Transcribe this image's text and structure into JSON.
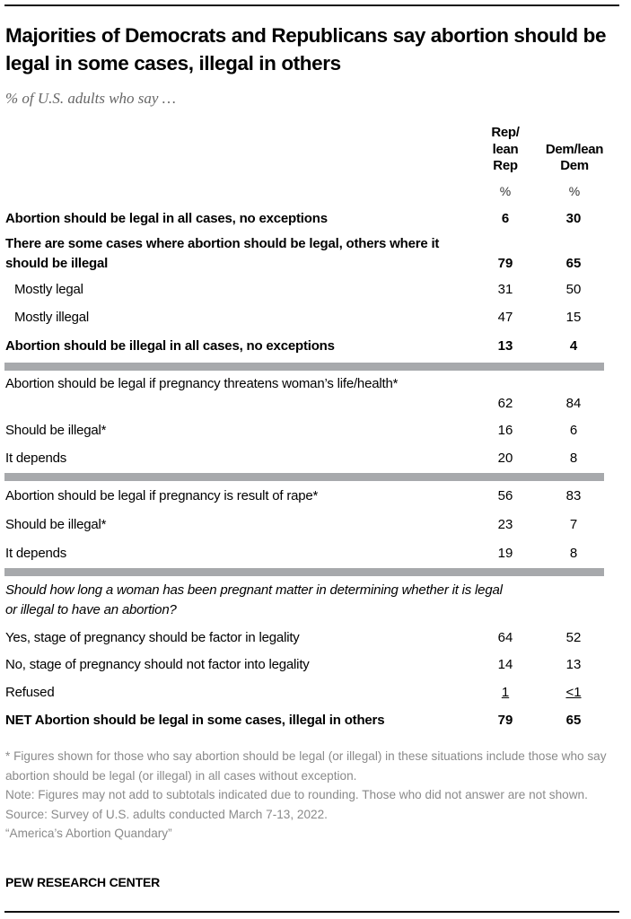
{
  "title": "Majorities of Democrats and Republicans say abortion should be legal in some cases, illegal in others",
  "subtitle": "% of U.S. adults who say …",
  "columns": [
    {
      "lines": [
        "Rep/",
        "lean",
        "Rep"
      ],
      "unit": "%"
    },
    {
      "lines": [
        "Dem/lean",
        "Dem"
      ],
      "unit": "%"
    }
  ],
  "chart_data": {
    "type": "table",
    "title": "Majorities of Democrats and Republicans say abortion should be legal in some cases, illegal in others",
    "columns": [
      "Rep/lean Rep",
      "Dem/lean Dem"
    ],
    "rows": [
      {
        "label": "Abortion should be legal in all cases, no exceptions",
        "values": [
          "6",
          "30"
        ],
        "style": "bold"
      },
      {
        "label": "There are some cases where abortion should be legal, others where it should be illegal",
        "values": [
          "79",
          "65"
        ],
        "style": "bold"
      },
      {
        "label": "Mostly legal",
        "values": [
          "31",
          "50"
        ],
        "style": "indent"
      },
      {
        "label": "Mostly illegal",
        "values": [
          "47",
          "15"
        ],
        "style": "indent"
      },
      {
        "label": "Abortion should be illegal in all cases, no exceptions",
        "values": [
          "13",
          "4"
        ],
        "style": "bold"
      },
      {
        "separator": true
      },
      {
        "label": "Abortion should be legal if pregnancy threatens woman’s life/health*",
        "values": [
          "62",
          "84"
        ]
      },
      {
        "label": "Should be illegal*",
        "values": [
          "16",
          "6"
        ]
      },
      {
        "label": "It depends",
        "values": [
          "20",
          "8"
        ]
      },
      {
        "separator": true
      },
      {
        "label": "Abortion should be legal if pregnancy is result of rape*",
        "values": [
          "56",
          "83"
        ]
      },
      {
        "label": "Should be illegal*",
        "values": [
          "23",
          "7"
        ]
      },
      {
        "label": "It depends",
        "values": [
          "19",
          "8"
        ]
      },
      {
        "separator": true
      },
      {
        "label": "Should how long a woman has been pregnant matter in determining whether it is legal or illegal to have an abortion?",
        "values": [
          "",
          ""
        ],
        "style": "italic"
      },
      {
        "label": "Yes, stage of pregnancy should be factor in legality",
        "values": [
          "64",
          "52"
        ]
      },
      {
        "label": "No, stage of pregnancy should not factor into legality",
        "values": [
          "14",
          "13"
        ]
      },
      {
        "label": "Refused",
        "values": [
          "1",
          "<1"
        ],
        "style": "underline-values"
      },
      {
        "label": "NET Abortion should be legal in some cases, illegal in others",
        "values": [
          "79",
          "65"
        ],
        "style": "bold"
      }
    ]
  },
  "notes": [
    "* Figures shown for those who say abortion should be legal (or illegal) in these situations include those who say abortion should be legal (or illegal) in all cases without exception.",
    "Note: Figures may not add to subtotals indicated due to rounding. Those who did not answer are not shown.",
    "Source: Survey of U.S. adults conducted March 7-13, 2022.",
    "“America’s Abortion Quandary”"
  ],
  "brand": "PEW RESEARCH CENTER",
  "colors": {
    "separator": "#a7a9ac",
    "notes": "#8a8a8a",
    "text": "#000000"
  }
}
